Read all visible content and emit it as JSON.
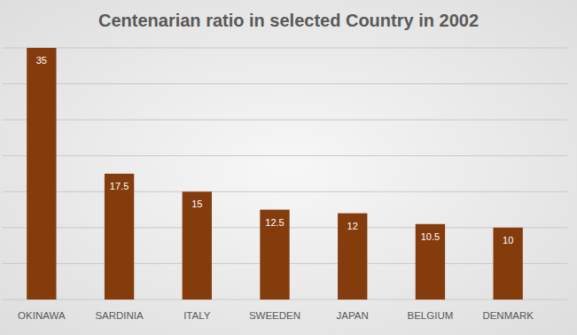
{
  "chart_data": {
    "type": "bar",
    "title": "Centenarian ratio in selected Country in 2002",
    "categories": [
      "OKINAWA",
      "SARDINIA",
      "ITALY",
      "SWEEDEN",
      "JAPAN",
      "BELGIUM",
      "DENMARK"
    ],
    "values": [
      35,
      17.5,
      15,
      12.5,
      12,
      10.5,
      10
    ],
    "color": "#843c0c",
    "ylim": [
      0,
      35
    ],
    "yticks": [
      0,
      5,
      10,
      15,
      20,
      25,
      30,
      35
    ],
    "grid": true,
    "data_labels": true,
    "tick_labels": "x"
  }
}
